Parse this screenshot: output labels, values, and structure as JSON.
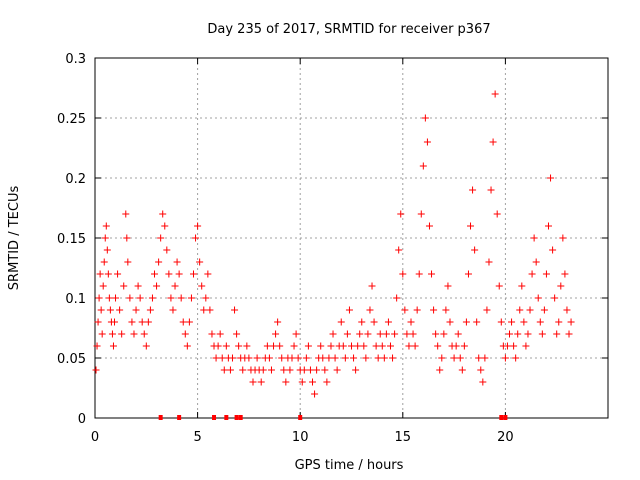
{
  "chart_data": {
    "type": "scatter",
    "title": "Day 235 of 2017, SRMTID for receiver p367",
    "xlabel": "GPS time / hours",
    "ylabel": "SRMTID / TECUs",
    "xlim": [
      0,
      25
    ],
    "ylim": [
      0,
      0.3
    ],
    "x_ticks": [
      0,
      5,
      10,
      15,
      20
    ],
    "y_ticks": [
      0,
      0.05,
      0.1,
      0.15,
      0.2,
      0.25,
      0.3
    ],
    "x_tick_labels": [
      "0",
      "5",
      "10",
      "15",
      "20"
    ],
    "y_tick_labels": [
      "0",
      "0.05",
      "0.1",
      "0.15",
      "0.2",
      "0.25",
      "0.3"
    ],
    "grid": true,
    "marker": "+",
    "color": "#ff0000",
    "gap_markers_x": [
      3.2,
      4.1,
      5.8,
      6.4,
      6.9,
      7.1,
      10.0,
      19.8,
      20.0
    ],
    "series": [
      {
        "name": "SRMTID",
        "points": [
          [
            0.05,
            0.04
          ],
          [
            0.1,
            0.06
          ],
          [
            0.15,
            0.08
          ],
          [
            0.2,
            0.1
          ],
          [
            0.25,
            0.12
          ],
          [
            0.3,
            0.09
          ],
          [
            0.35,
            0.07
          ],
          [
            0.4,
            0.11
          ],
          [
            0.45,
            0.13
          ],
          [
            0.5,
            0.15
          ],
          [
            0.55,
            0.16
          ],
          [
            0.6,
            0.14
          ],
          [
            0.65,
            0.12
          ],
          [
            0.7,
            0.1
          ],
          [
            0.75,
            0.09
          ],
          [
            0.8,
            0.08
          ],
          [
            0.85,
            0.07
          ],
          [
            0.9,
            0.06
          ],
          [
            0.95,
            0.08
          ],
          [
            1.0,
            0.1
          ],
          [
            1.1,
            0.12
          ],
          [
            1.2,
            0.09
          ],
          [
            1.3,
            0.07
          ],
          [
            1.4,
            0.11
          ],
          [
            1.5,
            0.17
          ],
          [
            1.55,
            0.15
          ],
          [
            1.6,
            0.13
          ],
          [
            1.7,
            0.1
          ],
          [
            1.8,
            0.08
          ],
          [
            1.9,
            0.07
          ],
          [
            2.0,
            0.09
          ],
          [
            2.1,
            0.11
          ],
          [
            2.2,
            0.1
          ],
          [
            2.3,
            0.08
          ],
          [
            2.4,
            0.07
          ],
          [
            2.5,
            0.06
          ],
          [
            2.6,
            0.08
          ],
          [
            2.7,
            0.09
          ],
          [
            2.8,
            0.1
          ],
          [
            2.9,
            0.12
          ],
          [
            3.0,
            0.11
          ],
          [
            3.1,
            0.13
          ],
          [
            3.2,
            0.15
          ],
          [
            3.3,
            0.17
          ],
          [
            3.4,
            0.16
          ],
          [
            3.5,
            0.14
          ],
          [
            3.6,
            0.12
          ],
          [
            3.7,
            0.1
          ],
          [
            3.8,
            0.09
          ],
          [
            3.9,
            0.11
          ],
          [
            4.0,
            0.13
          ],
          [
            4.1,
            0.12
          ],
          [
            4.2,
            0.1
          ],
          [
            4.3,
            0.08
          ],
          [
            4.4,
            0.07
          ],
          [
            4.5,
            0.06
          ],
          [
            4.6,
            0.08
          ],
          [
            4.7,
            0.1
          ],
          [
            4.8,
            0.12
          ],
          [
            4.9,
            0.15
          ],
          [
            5.0,
            0.16
          ],
          [
            5.1,
            0.13
          ],
          [
            5.2,
            0.11
          ],
          [
            5.3,
            0.09
          ],
          [
            5.4,
            0.1
          ],
          [
            5.5,
            0.12
          ],
          [
            5.6,
            0.09
          ],
          [
            5.7,
            0.07
          ],
          [
            5.8,
            0.06
          ],
          [
            5.9,
            0.05
          ],
          [
            6.0,
            0.06
          ],
          [
            6.1,
            0.07
          ],
          [
            6.2,
            0.05
          ],
          [
            6.3,
            0.04
          ],
          [
            6.4,
            0.06
          ],
          [
            6.5,
            0.05
          ],
          [
            6.6,
            0.04
          ],
          [
            6.7,
            0.05
          ],
          [
            6.8,
            0.09
          ],
          [
            6.9,
            0.07
          ],
          [
            7.0,
            0.06
          ],
          [
            7.1,
            0.05
          ],
          [
            7.2,
            0.04
          ],
          [
            7.3,
            0.05
          ],
          [
            7.4,
            0.06
          ],
          [
            7.5,
            0.05
          ],
          [
            7.6,
            0.04
          ],
          [
            7.7,
            0.03
          ],
          [
            7.8,
            0.04
          ],
          [
            7.9,
            0.05
          ],
          [
            8.0,
            0.04
          ],
          [
            8.1,
            0.03
          ],
          [
            8.2,
            0.04
          ],
          [
            8.3,
            0.05
          ],
          [
            8.4,
            0.06
          ],
          [
            8.5,
            0.05
          ],
          [
            8.6,
            0.04
          ],
          [
            8.7,
            0.06
          ],
          [
            8.8,
            0.07
          ],
          [
            8.9,
            0.08
          ],
          [
            9.0,
            0.06
          ],
          [
            9.1,
            0.05
          ],
          [
            9.2,
            0.04
          ],
          [
            9.3,
            0.03
          ],
          [
            9.4,
            0.05
          ],
          [
            9.5,
            0.04
          ],
          [
            9.6,
            0.05
          ],
          [
            9.7,
            0.06
          ],
          [
            9.8,
            0.07
          ],
          [
            9.9,
            0.05
          ],
          [
            10.0,
            0.04
          ],
          [
            10.1,
            0.03
          ],
          [
            10.2,
            0.04
          ],
          [
            10.3,
            0.05
          ],
          [
            10.4,
            0.06
          ],
          [
            10.5,
            0.04
          ],
          [
            10.6,
            0.03
          ],
          [
            10.7,
            0.02
          ],
          [
            10.8,
            0.04
          ],
          [
            10.9,
            0.05
          ],
          [
            11.0,
            0.06
          ],
          [
            11.1,
            0.05
          ],
          [
            11.2,
            0.04
          ],
          [
            11.3,
            0.03
          ],
          [
            11.4,
            0.05
          ],
          [
            11.5,
            0.06
          ],
          [
            11.6,
            0.07
          ],
          [
            11.7,
            0.05
          ],
          [
            11.8,
            0.04
          ],
          [
            11.9,
            0.06
          ],
          [
            12.0,
            0.08
          ],
          [
            12.1,
            0.06
          ],
          [
            12.2,
            0.05
          ],
          [
            12.3,
            0.07
          ],
          [
            12.4,
            0.09
          ],
          [
            12.5,
            0.06
          ],
          [
            12.6,
            0.05
          ],
          [
            12.7,
            0.04
          ],
          [
            12.8,
            0.06
          ],
          [
            12.9,
            0.07
          ],
          [
            13.0,
            0.08
          ],
          [
            13.1,
            0.06
          ],
          [
            13.2,
            0.05
          ],
          [
            13.3,
            0.07
          ],
          [
            13.4,
            0.09
          ],
          [
            13.5,
            0.11
          ],
          [
            13.6,
            0.08
          ],
          [
            13.7,
            0.06
          ],
          [
            13.8,
            0.05
          ],
          [
            13.9,
            0.07
          ],
          [
            14.0,
            0.06
          ],
          [
            14.1,
            0.05
          ],
          [
            14.2,
            0.07
          ],
          [
            14.3,
            0.08
          ],
          [
            14.4,
            0.06
          ],
          [
            14.5,
            0.05
          ],
          [
            14.6,
            0.07
          ],
          [
            14.7,
            0.1
          ],
          [
            14.8,
            0.14
          ],
          [
            14.9,
            0.17
          ],
          [
            15.0,
            0.12
          ],
          [
            15.1,
            0.09
          ],
          [
            15.2,
            0.07
          ],
          [
            15.3,
            0.06
          ],
          [
            15.4,
            0.08
          ],
          [
            15.5,
            0.07
          ],
          [
            15.6,
            0.06
          ],
          [
            15.7,
            0.09
          ],
          [
            15.8,
            0.12
          ],
          [
            15.9,
            0.17
          ],
          [
            16.0,
            0.21
          ],
          [
            16.1,
            0.25
          ],
          [
            16.2,
            0.23
          ],
          [
            16.3,
            0.16
          ],
          [
            16.4,
            0.12
          ],
          [
            16.5,
            0.09
          ],
          [
            16.6,
            0.07
          ],
          [
            16.7,
            0.06
          ],
          [
            16.8,
            0.04
          ],
          [
            16.9,
            0.05
          ],
          [
            17.0,
            0.07
          ],
          [
            17.1,
            0.09
          ],
          [
            17.2,
            0.11
          ],
          [
            17.3,
            0.08
          ],
          [
            17.4,
            0.06
          ],
          [
            17.5,
            0.05
          ],
          [
            17.6,
            0.06
          ],
          [
            17.7,
            0.07
          ],
          [
            17.8,
            0.05
          ],
          [
            17.9,
            0.04
          ],
          [
            18.0,
            0.06
          ],
          [
            18.1,
            0.08
          ],
          [
            18.2,
            0.12
          ],
          [
            18.3,
            0.16
          ],
          [
            18.4,
            0.19
          ],
          [
            18.5,
            0.14
          ],
          [
            18.6,
            0.08
          ],
          [
            18.7,
            0.05
          ],
          [
            18.8,
            0.04
          ],
          [
            18.9,
            0.03
          ],
          [
            19.0,
            0.05
          ],
          [
            19.1,
            0.09
          ],
          [
            19.2,
            0.13
          ],
          [
            19.3,
            0.19
          ],
          [
            19.4,
            0.23
          ],
          [
            19.5,
            0.27
          ],
          [
            19.6,
            0.17
          ],
          [
            19.7,
            0.11
          ],
          [
            19.8,
            0.08
          ],
          [
            19.9,
            0.06
          ],
          [
            20.0,
            0.05
          ],
          [
            20.1,
            0.06
          ],
          [
            20.2,
            0.07
          ],
          [
            20.3,
            0.08
          ],
          [
            20.4,
            0.06
          ],
          [
            20.5,
            0.05
          ],
          [
            20.6,
            0.07
          ],
          [
            20.7,
            0.09
          ],
          [
            20.8,
            0.11
          ],
          [
            20.9,
            0.08
          ],
          [
            21.0,
            0.06
          ],
          [
            21.1,
            0.07
          ],
          [
            21.2,
            0.09
          ],
          [
            21.3,
            0.12
          ],
          [
            21.4,
            0.15
          ],
          [
            21.5,
            0.13
          ],
          [
            21.6,
            0.1
          ],
          [
            21.7,
            0.08
          ],
          [
            21.8,
            0.07
          ],
          [
            21.9,
            0.09
          ],
          [
            22.0,
            0.12
          ],
          [
            22.1,
            0.16
          ],
          [
            22.2,
            0.2
          ],
          [
            22.3,
            0.14
          ],
          [
            22.4,
            0.1
          ],
          [
            22.5,
            0.07
          ],
          [
            22.6,
            0.08
          ],
          [
            22.7,
            0.11
          ],
          [
            22.8,
            0.15
          ],
          [
            22.9,
            0.12
          ],
          [
            23.0,
            0.09
          ],
          [
            23.1,
            0.07
          ],
          [
            23.2,
            0.08
          ]
        ]
      }
    ]
  }
}
